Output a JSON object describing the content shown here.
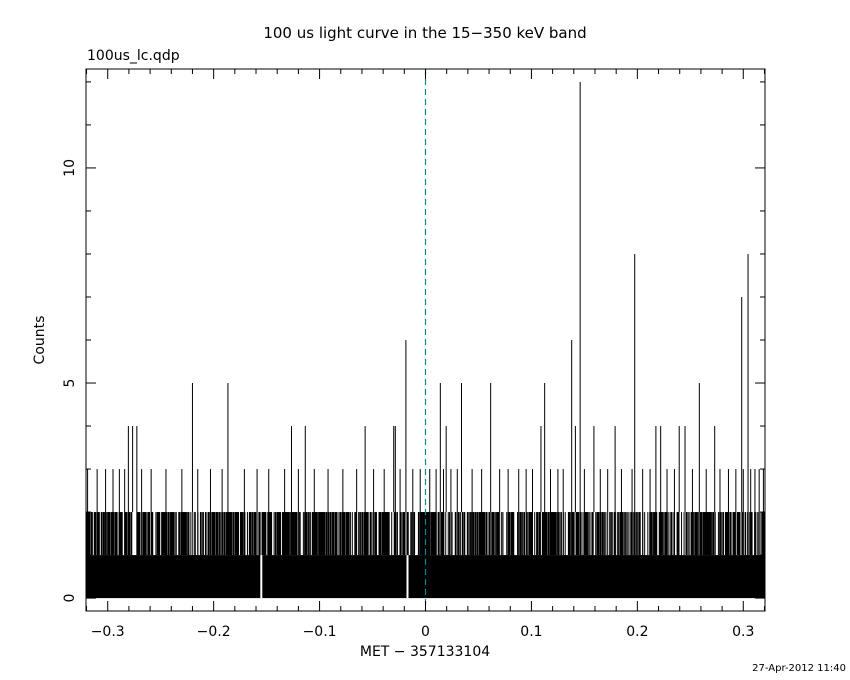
{
  "chart_data": {
    "type": "bar",
    "title": "100 us light curve in the 15−350 keV band",
    "subtitle": "100us_lc.qdp",
    "xlabel": "MET − 357133104",
    "ylabel": "Counts",
    "xlim": [
      -0.3205,
      0.3205
    ],
    "ylim": [
      -0.3,
      12.3
    ],
    "x_ticks": [
      {
        "value": -0.3,
        "label": "−0.3"
      },
      {
        "value": -0.2,
        "label": "−0.2"
      },
      {
        "value": -0.1,
        "label": "−0.1"
      },
      {
        "value": 0,
        "label": "0"
      },
      {
        "value": 0.1,
        "label": "0.1"
      },
      {
        "value": 0.2,
        "label": "0.2"
      },
      {
        "value": 0.3,
        "label": "0.3"
      }
    ],
    "y_ticks": [
      {
        "value": 0,
        "label": "0"
      },
      {
        "value": 5,
        "label": "5"
      },
      {
        "value": 10,
        "label": "10"
      }
    ],
    "bin_width": 0.0001,
    "baseline_note_values": "1",
    "peaks": [
      {
        "x": -0.2805,
        "y": 4
      },
      {
        "x": -0.2765,
        "y": 4
      },
      {
        "x": -0.2725,
        "y": 4
      },
      {
        "x": -0.22,
        "y": 5
      },
      {
        "x": -0.1865,
        "y": 5
      },
      {
        "x": -0.1265,
        "y": 4
      },
      {
        "x": -0.1135,
        "y": 4
      },
      {
        "x": -0.057,
        "y": 4
      },
      {
        "x": -0.03,
        "y": 4
      },
      {
        "x": -0.0285,
        "y": 4
      },
      {
        "x": -0.0185,
        "y": 6
      },
      {
        "x": 0.014,
        "y": 5
      },
      {
        "x": 0.0195,
        "y": 4
      },
      {
        "x": 0.034,
        "y": 5
      },
      {
        "x": 0.0615,
        "y": 5
      },
      {
        "x": 0.109,
        "y": 4
      },
      {
        "x": 0.1125,
        "y": 5
      },
      {
        "x": 0.138,
        "y": 6
      },
      {
        "x": 0.1415,
        "y": 4
      },
      {
        "x": 0.146,
        "y": 12
      },
      {
        "x": 0.159,
        "y": 4
      },
      {
        "x": 0.179,
        "y": 4
      },
      {
        "x": 0.1975,
        "y": 8
      },
      {
        "x": 0.2175,
        "y": 4
      },
      {
        "x": 0.222,
        "y": 4
      },
      {
        "x": 0.2395,
        "y": 4
      },
      {
        "x": 0.245,
        "y": 4
      },
      {
        "x": 0.2585,
        "y": 5
      },
      {
        "x": 0.273,
        "y": 4
      },
      {
        "x": 0.2985,
        "y": 7
      },
      {
        "x": 0.3045,
        "y": 8
      }
    ],
    "threes": [
      -0.319,
      -0.31,
      -0.302,
      -0.295,
      -0.289,
      -0.284,
      -0.268,
      -0.259,
      -0.245,
      -0.23,
      -0.215,
      -0.203,
      -0.192,
      -0.171,
      -0.159,
      -0.148,
      -0.133,
      -0.12,
      -0.105,
      -0.092,
      -0.078,
      -0.065,
      -0.049,
      -0.039,
      -0.024,
      -0.012,
      -0.005,
      0.004,
      0.01,
      0.017,
      0.024,
      0.03,
      0.044,
      0.053,
      0.07,
      0.078,
      0.088,
      0.095,
      0.101,
      0.118,
      0.125,
      0.13,
      0.15,
      0.165,
      0.172,
      0.185,
      0.195,
      0.205,
      0.212,
      0.228,
      0.235,
      0.252,
      0.265,
      0.278,
      0.286,
      0.293,
      0.3,
      0.307,
      0.311,
      0.315,
      0.319
    ],
    "gaps": [
      -0.155,
      -0.017
    ],
    "vline": {
      "x": 0,
      "color": "#0088aa",
      "style": "dashed"
    },
    "line_color": "#000000",
    "grid": false
  },
  "timestamp": "27-Apr-2012 11:40"
}
